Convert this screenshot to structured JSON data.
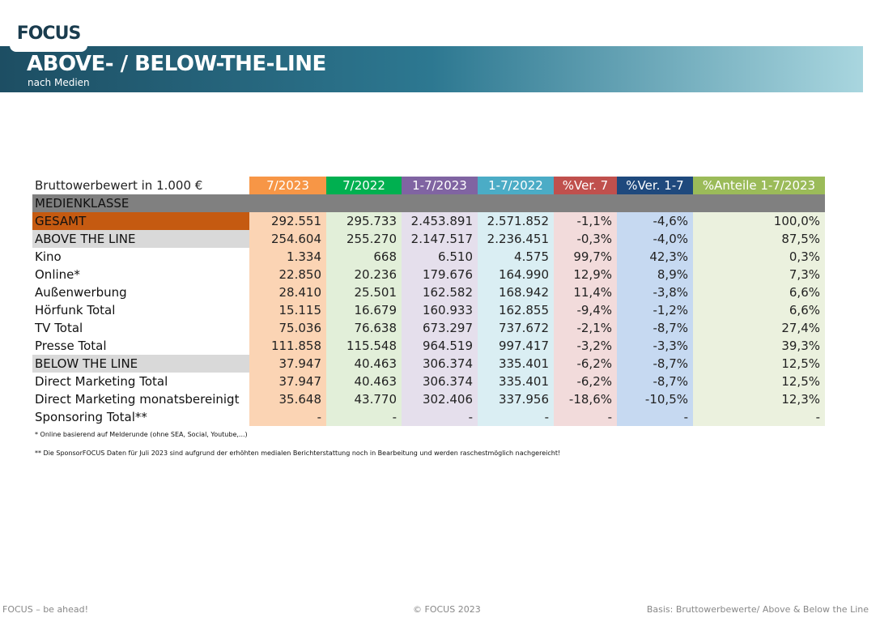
{
  "header": {
    "logo": "FOCUS",
    "title": "ABOVE- / BELOW-THE-LINE",
    "subtitle": "nach Medien"
  },
  "table": {
    "caption": "Bruttowerbewert in 1.000 €",
    "columns": [
      "7/2023",
      "7/2022",
      "1-7/2023",
      "1-7/2022",
      "%Ver. 7",
      "%Ver. 1-7",
      "%Anteile 1-7/2023"
    ],
    "section": "MEDIENKLASSE",
    "rows": [
      [
        "GESAMT",
        "292.551",
        "295.733",
        "2.453.891",
        "2.571.852",
        "-1,1%",
        "-4,6%",
        "100,0%"
      ],
      [
        "ABOVE THE LINE",
        "254.604",
        "255.270",
        "2.147.517",
        "2.236.451",
        "-0,3%",
        "-4,0%",
        "87,5%"
      ],
      [
        "Kino",
        "1.334",
        "668",
        "6.510",
        "4.575",
        "99,7%",
        "42,3%",
        "0,3%"
      ],
      [
        "Online*",
        "22.850",
        "20.236",
        "179.676",
        "164.990",
        "12,9%",
        "8,9%",
        "7,3%"
      ],
      [
        "Außenwerbung",
        "28.410",
        "25.501",
        "162.582",
        "168.942",
        "11,4%",
        "-3,8%",
        "6,6%"
      ],
      [
        "Hörfunk Total",
        "15.115",
        "16.679",
        "160.933",
        "162.855",
        "-9,4%",
        "-1,2%",
        "6,6%"
      ],
      [
        "TV Total",
        "75.036",
        "76.638",
        "673.297",
        "737.672",
        "-2,1%",
        "-8,7%",
        "27,4%"
      ],
      [
        "Presse Total",
        "111.858",
        "115.548",
        "964.519",
        "997.417",
        "-3,2%",
        "-3,3%",
        "39,3%"
      ],
      [
        "BELOW THE LINE",
        "37.947",
        "40.463",
        "306.374",
        "335.401",
        "-6,2%",
        "-8,7%",
        "12,5%"
      ],
      [
        "Direct Marketing Total",
        "37.947",
        "40.463",
        "306.374",
        "335.401",
        "-6,2%",
        "-8,7%",
        "12,5%"
      ],
      [
        "Direct Marketing monatsbereinigt",
        "35.648",
        "43.770",
        "302.406",
        "337.956",
        "-18,6%",
        "-10,5%",
        "12,3%"
      ],
      [
        "Sponsoring Total**",
        "-",
        "-",
        "-",
        "-",
        "-",
        "-",
        "-"
      ]
    ]
  },
  "footnotes": [
    "* Online basierend auf Melderunde (ohne SEA, Social, Youtube,...)",
    "** Die SponsorFOCUS Daten für Juli 2023 sind aufgrund der erhöhten medialen Berichterstattung noch in Bearbeitung und werden raschestmöglich nachgereicht!"
  ],
  "footer": {
    "left": "FOCUS – be ahead!",
    "center": "© FOCUS 2023",
    "right": "Basis: Bruttowerbewerte/ Above & Below the Line"
  }
}
